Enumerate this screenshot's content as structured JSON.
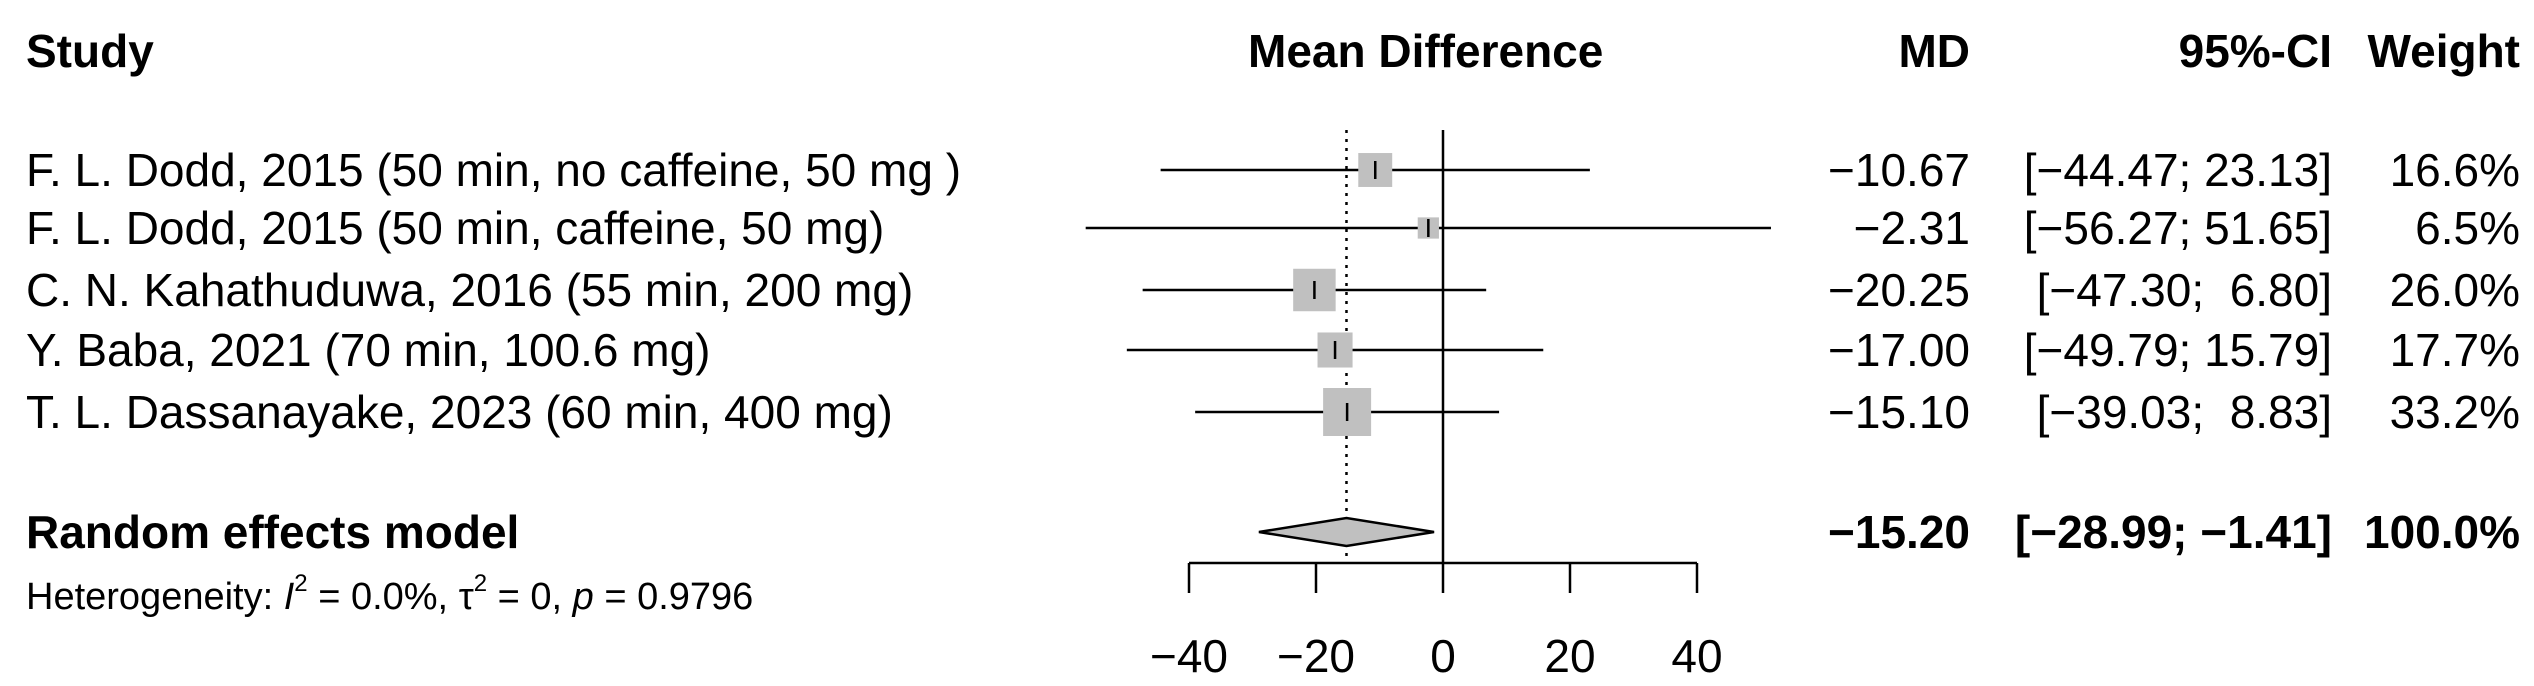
{
  "chart_data": {
    "type": "forest",
    "headers": {
      "study": "Study",
      "effect": "Mean Difference",
      "md": "MD",
      "ci": "95%-CI",
      "weight": "Weight"
    },
    "studies": [
      {
        "label": "F. L. Dodd, 2015 (50 min, no caffeine, 50 mg )",
        "md": -10.67,
        "lower": -44.47,
        "upper": 23.13,
        "weight": 16.6,
        "md_text": "−10.67",
        "ci_text": "[−44.47; 23.13]",
        "weight_text": "16.6%"
      },
      {
        "label": "F. L. Dodd, 2015 (50 min, caffeine, 50 mg)",
        "md": -2.31,
        "lower": -56.27,
        "upper": 51.65,
        "weight": 6.5,
        "md_text": "−2.31",
        "ci_text": "[−56.27; 51.65]",
        "weight_text": "6.5%"
      },
      {
        "label": "C. N. Kahathuduwa, 2016 (55 min, 200 mg)",
        "md": -20.25,
        "lower": -47.3,
        "upper": 6.8,
        "weight": 26.0,
        "md_text": "−20.25",
        "ci_text": "[−47.30;  6.80]",
        "weight_text": "26.0%"
      },
      {
        "label": "Y. Baba, 2021 (70 min, 100.6 mg)",
        "md": -17.0,
        "lower": -49.79,
        "upper": 15.79,
        "weight": 17.7,
        "md_text": "−17.00",
        "ci_text": "[−49.79; 15.79]",
        "weight_text": "17.7%"
      },
      {
        "label": "T. L. Dassanayake, 2023 (60 min, 400 mg)",
        "md": -15.1,
        "lower": -39.03,
        "upper": 8.83,
        "weight": 33.2,
        "md_text": "−15.10",
        "ci_text": "[−39.03;  8.83]",
        "weight_text": "33.2%"
      }
    ],
    "pooled": {
      "label": "Random effects model",
      "md": -15.2,
      "lower": -28.99,
      "upper": -1.41,
      "weight": 100.0,
      "md_text": "−15.20",
      "ci_text": "[−28.99; −1.41]",
      "weight_text": "100.0%"
    },
    "heterogeneity": {
      "prefix": "Heterogeneity: ",
      "i2_symbol": "I",
      "i2_exp": "2",
      "i2_value": " = 0.0%, ",
      "tau_symbol": "τ",
      "tau_exp": "2",
      "tau_value": " = 0, ",
      "p_symbol": "p",
      "p_value": " = 0.9796"
    },
    "x_axis": {
      "xlim": [
        -40,
        40
      ],
      "ticks": [
        -40,
        -20,
        0,
        20,
        40
      ],
      "tick_labels": [
        "−40",
        "−20",
        "0",
        "20",
        "40"
      ]
    },
    "colors": {
      "square": "#c0c0c0",
      "diamond": "#c0c0c0",
      "line": "#000000"
    }
  }
}
